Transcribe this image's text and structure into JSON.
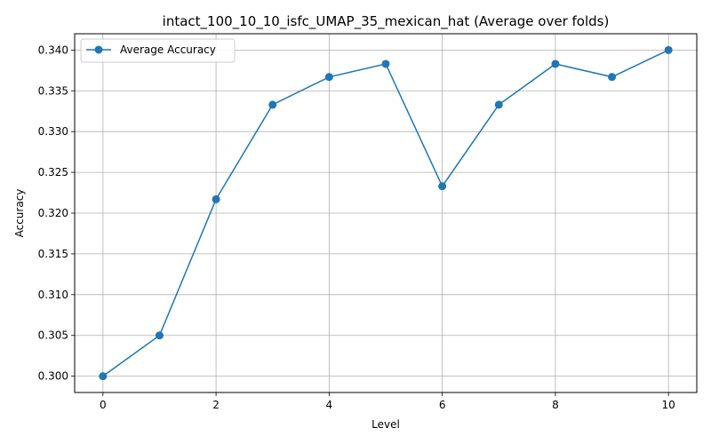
{
  "chart_data": {
    "type": "line",
    "title": "intact_100_10_10_isfc_UMAP_35_mexican_hat (Average over folds)",
    "xlabel": "Level",
    "ylabel": "Accuracy",
    "xlim": [
      -0.5,
      10.5
    ],
    "ylim": [
      0.298,
      0.342
    ],
    "xticks": [
      0,
      2,
      4,
      6,
      8,
      10
    ],
    "yticks": [
      0.3,
      0.305,
      0.31,
      0.315,
      0.32,
      0.325,
      0.33,
      0.335,
      0.34
    ],
    "ytick_labels": [
      "0.300",
      "0.305",
      "0.310",
      "0.315",
      "0.320",
      "0.325",
      "0.330",
      "0.335",
      "0.340"
    ],
    "grid": true,
    "legend_position": "upper-left",
    "series": [
      {
        "name": "Average Accuracy",
        "color": "#1f77b4",
        "marker": "circle",
        "x": [
          0,
          1,
          2,
          3,
          4,
          5,
          6,
          7,
          8,
          9,
          10
        ],
        "y": [
          0.3,
          0.305,
          0.3217,
          0.3333,
          0.3367,
          0.3383,
          0.3233,
          0.3333,
          0.3383,
          0.3367,
          0.34
        ]
      }
    ]
  }
}
